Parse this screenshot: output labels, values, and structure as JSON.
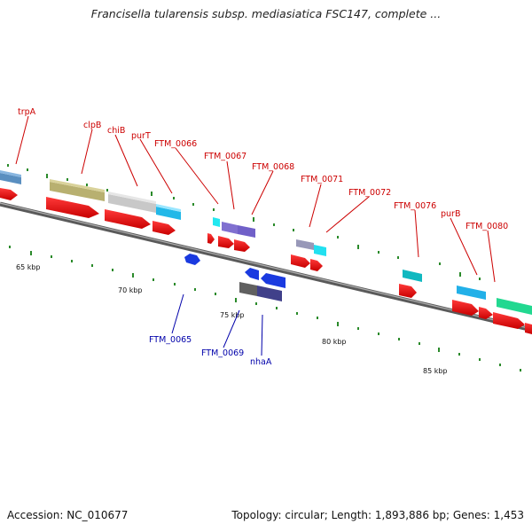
{
  "title": "Francisella tularensis subsp. mediasiatica FSC147, complete ...",
  "footer": {
    "accession": "Accession: NC_010677",
    "summary": "Topology: circular; Length: 1,893,886 bp; Genes: 1,453"
  },
  "scale": {
    "ticks": [
      "65 kbp",
      "70 kbp",
      "75 kbp",
      "80 kbp",
      "85 kbp"
    ]
  },
  "genes_top": [
    {
      "name": "trpA"
    },
    {
      "name": "clpB"
    },
    {
      "name": "chiB"
    },
    {
      "name": "purT"
    },
    {
      "name": "FTM_0066"
    },
    {
      "name": "FTM_0067"
    },
    {
      "name": "FTM_0068"
    },
    {
      "name": "FTM_0071"
    },
    {
      "name": "FTM_0072"
    },
    {
      "name": "FTM_0076"
    },
    {
      "name": "purB"
    },
    {
      "name": "FTM_0080"
    }
  ],
  "genes_bottom": [
    {
      "name": "FTM_0065"
    },
    {
      "name": "FTM_0069"
    },
    {
      "name": "nhaA"
    }
  ],
  "colors": {
    "backbone": "#7a7a7a",
    "cds_red": "#e80000",
    "label_top": "#cc0000",
    "label_bottom": "#0000aa",
    "tick_green": "#2a8a2a"
  }
}
